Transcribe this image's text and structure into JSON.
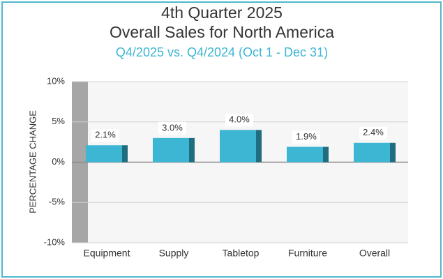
{
  "chart_data": {
    "type": "bar",
    "title": [
      "4th Quarter 2025",
      "Overall Sales for North America"
    ],
    "subtitle": "Q4/2025 vs. Q4/2024 (Oct 1 - Dec 31)",
    "y_label": "PERCENTAGE CHANGE",
    "categories": [
      "Equipment",
      "Supply",
      "Tabletop",
      "Furniture",
      "Overall"
    ],
    "values": [
      2.1,
      3.0,
      4.0,
      1.9,
      2.4
    ],
    "value_labels": [
      "2.1%",
      "3.0%",
      "4.0%",
      "1.9%",
      "2.4%"
    ],
    "color": "#3db6d3",
    "ylim": [
      -10,
      10
    ],
    "yticks": [
      {
        "value": -10,
        "label": "-10%"
      },
      {
        "value": -5,
        "label": "-5%"
      },
      {
        "value": 0,
        "label": "0%"
      },
      {
        "value": 5,
        "label": "5%"
      },
      {
        "value": 10,
        "label": "10%"
      }
    ],
    "grid": true
  }
}
